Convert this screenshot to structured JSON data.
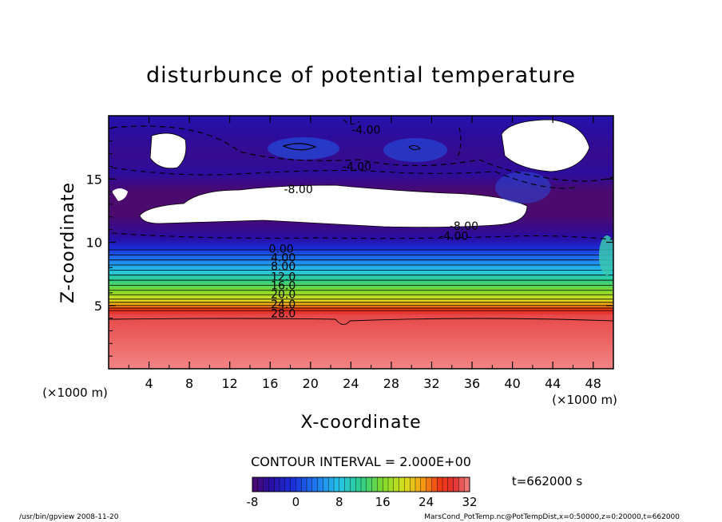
{
  "chart_data": {
    "type": "heatmap",
    "title": "disturbunce of potential temperature",
    "xlabel": "X-coordinate",
    "ylabel": "Z-coordinate",
    "x_unit": "(×1000 m)",
    "y_unit": "(×1000 m)",
    "xlim": [
      0,
      50
    ],
    "ylim": [
      0,
      20
    ],
    "x_ticks": [
      "4",
      "8",
      "12",
      "16",
      "20",
      "24",
      "28",
      "32",
      "36",
      "40",
      "44",
      "48"
    ],
    "y_ticks": [
      "5",
      "10",
      "15"
    ],
    "contour_interval_text": "CONTOUR INTERVAL = 2.000E+00",
    "time_label": "t=662000 s",
    "colorbar": {
      "min": -8,
      "max": 32,
      "tick_labels": [
        "-8",
        "0",
        "8",
        "16",
        "24",
        "32"
      ]
    },
    "contour_labels": [
      {
        "text": "-4.00",
        "x": 25.5,
        "z": 18.9
      },
      {
        "text": "-4.00",
        "x": 24.6,
        "z": 16.0
      },
      {
        "text": "-8.00",
        "x": 18.8,
        "z": 14.2
      },
      {
        "text": "-8.00",
        "x": 35.2,
        "z": 11.3
      },
      {
        "text": "-4.00",
        "x": 34.2,
        "z": 10.5
      },
      {
        "text": "0.00",
        "x": 17.1,
        "z": 9.5
      },
      {
        "text": "4.00",
        "x": 17.3,
        "z": 8.8
      },
      {
        "text": "8.00",
        "x": 17.3,
        "z": 8.1
      },
      {
        "text": "12.0",
        "x": 17.3,
        "z": 7.3
      },
      {
        "text": "16.0",
        "x": 17.3,
        "z": 6.6
      },
      {
        "text": "20.0",
        "x": 17.3,
        "z": 5.9
      },
      {
        "text": "24.0",
        "x": 17.3,
        "z": 5.1
      },
      {
        "text": "28.0",
        "x": 17.3,
        "z": 4.4
      }
    ],
    "profile_z_vs_theta": [
      [
        0,
        32
      ],
      [
        4.3,
        30
      ],
      [
        4.6,
        28
      ],
      [
        5.0,
        24
      ],
      [
        5.5,
        20
      ],
      [
        6.2,
        16
      ],
      [
        7.0,
        12
      ],
      [
        7.8,
        8
      ],
      [
        8.6,
        4
      ],
      [
        9.4,
        0
      ],
      [
        10.2,
        -4
      ],
      [
        11.0,
        -6
      ],
      [
        12.2,
        -8
      ],
      [
        14.0,
        -8
      ],
      [
        15.5,
        -5
      ],
      [
        17.0,
        -6
      ],
      [
        20.0,
        -4
      ]
    ]
  },
  "footer": {
    "left": "/usr/bin/gpview   2008-11-20",
    "right": "MarsCond_PotTemp.nc@PotTempDist,x=0:50000,z=0:20000,t=662000"
  }
}
